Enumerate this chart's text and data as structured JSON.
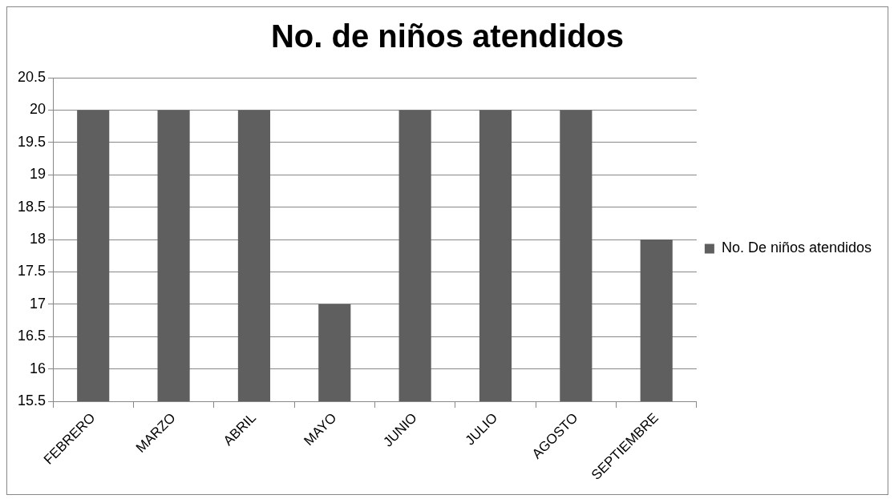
{
  "chart_data": {
    "type": "bar",
    "title": "No. de niños atendidos",
    "categories": [
      "FEBRERO",
      "MARZO",
      "ABRIL",
      "MAYO",
      "JUNIO",
      "JULIO",
      "AGOSTO",
      "SEPTIEMBRE"
    ],
    "series": [
      {
        "name": "No. De niños atendidos",
        "color": "#5f5f5f",
        "values": [
          20,
          20,
          20,
          17,
          20,
          20,
          20,
          18
        ]
      }
    ],
    "ylim": [
      15.5,
      20.5
    ],
    "yticks": [
      15.5,
      16,
      16.5,
      17,
      17.5,
      18,
      18.5,
      19,
      19.5,
      20,
      20.5
    ],
    "grid": "y",
    "legend": "right"
  }
}
